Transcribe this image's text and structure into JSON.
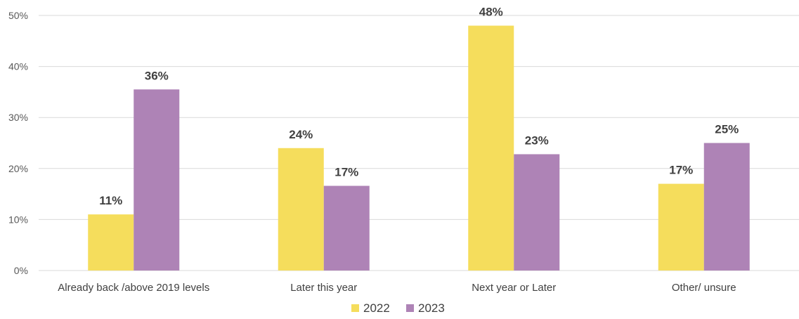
{
  "chart_data": {
    "type": "bar",
    "categories": [
      "Already back /above 2019 levels",
      "Later this year",
      "Next year or Later",
      "Other/ unsure"
    ],
    "series": [
      {
        "name": "2022",
        "values": [
          11,
          24,
          48,
          17
        ],
        "labels": [
          "11%",
          "24%",
          "48%",
          "17%"
        ],
        "color": "#f5dd5c"
      },
      {
        "name": "2023",
        "values": [
          35.5,
          16.6,
          22.8,
          25
        ],
        "labels": [
          "36%",
          "17%",
          "23%",
          "25%"
        ],
        "color": "#ae83b6"
      }
    ],
    "ylim": [
      0,
      50
    ],
    "yticks": [
      0,
      10,
      20,
      30,
      40,
      50
    ],
    "ytick_labels": [
      "0%",
      "10%",
      "20%",
      "30%",
      "40%",
      "50%"
    ],
    "grid": true,
    "legend_position": "bottom",
    "title": "",
    "xlabel": "",
    "ylabel": ""
  }
}
